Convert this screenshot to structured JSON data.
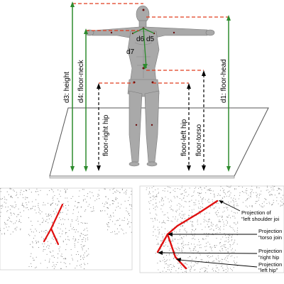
{
  "figure": {
    "top_panel": {
      "measurements": [
        {
          "id": "height",
          "label": "d3: height"
        },
        {
          "id": "floor-neck",
          "label": "d4: floor-neck"
        },
        {
          "id": "floor-head",
          "label": "d1: floor-head"
        },
        {
          "id": "floor-right-hip",
          "label": "floor-right hip"
        },
        {
          "id": "floor-left-hip",
          "label": "floor-left hip"
        },
        {
          "id": "floor-torso",
          "label": "floor-torso"
        }
      ],
      "body_labels": {
        "d6": "d6",
        "d5": "d5",
        "d7": "d7"
      },
      "colors": {
        "green": "#2e8b2e",
        "red_dashed": "#e03c1e",
        "black": "#000000",
        "body": "#a8a8a8"
      }
    },
    "bottom_right_panel": {
      "annotations": [
        {
          "line1": "Projection of",
          "line2": "\"left shoulder joi"
        },
        {
          "line1": "Projection",
          "line2": "\"torso join"
        },
        {
          "line1": "Projection",
          "line2": "\"right hip"
        },
        {
          "line1": "Projection",
          "line2": "\"left hip\""
        }
      ],
      "colors": {
        "skeleton": "#e01010",
        "points": "#7a7a7a"
      }
    }
  }
}
